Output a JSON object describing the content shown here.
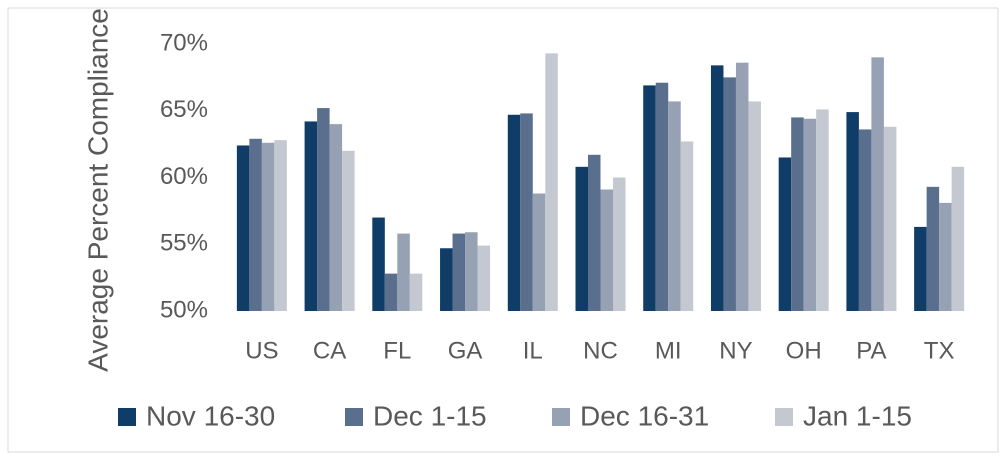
{
  "chart_data": {
    "type": "bar",
    "y_label": "Average Percent Compliance",
    "categories": [
      "US",
      "CA",
      "FL",
      "GA",
      "IL",
      "NC",
      "MI",
      "NY",
      "OH",
      "PA",
      "TX"
    ],
    "series": [
      {
        "name": "Nov 16-30",
        "color": "#0f3d68",
        "values": [
          62.4,
          64.2,
          57.0,
          54.7,
          64.7,
          60.8,
          66.9,
          68.4,
          61.5,
          64.9,
          56.3
        ]
      },
      {
        "name": "Dec 1-15",
        "color": "#5a6e8e",
        "values": [
          62.9,
          65.2,
          52.8,
          55.8,
          64.8,
          61.7,
          67.1,
          67.5,
          64.5,
          63.6,
          59.3
        ]
      },
      {
        "name": "Dec 16-31",
        "color": "#96a1b4",
        "values": [
          62.6,
          64.0,
          55.8,
          55.9,
          58.8,
          59.1,
          65.7,
          68.6,
          64.4,
          69.0,
          58.1
        ]
      },
      {
        "name": "Jan 1-15",
        "color": "#c3c8d1",
        "values": [
          62.8,
          62.0,
          52.8,
          54.9,
          69.3,
          60.0,
          62.7,
          65.7,
          65.1,
          63.8,
          60.8
        ]
      }
    ],
    "ylim": [
      50,
      70
    ],
    "yticks": [
      {
        "value": 50,
        "label": "50%"
      },
      {
        "value": 55,
        "label": "55%"
      },
      {
        "value": 60,
        "label": "60%"
      },
      {
        "value": 65,
        "label": "65%"
      },
      {
        "value": 70,
        "label": "70%"
      }
    ],
    "legend": "bottom"
  }
}
